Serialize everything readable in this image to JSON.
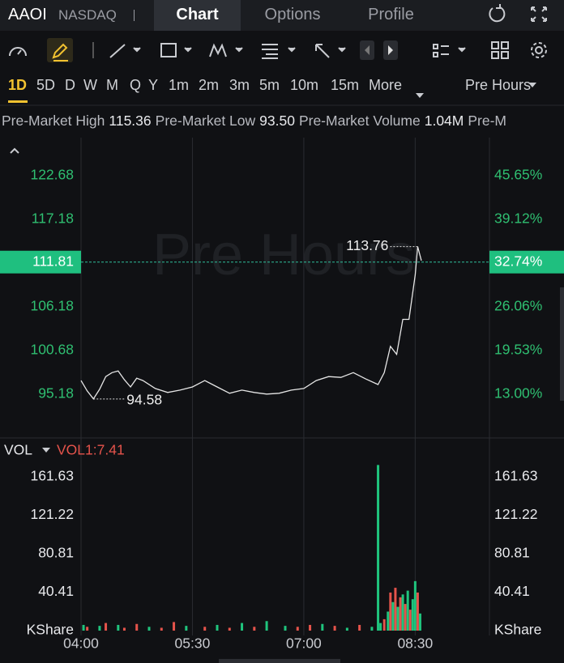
{
  "header": {
    "symbol": "AAOI",
    "exchange": "NASDAQ",
    "tabs": [
      "Chart",
      "Options",
      "Profile"
    ]
  },
  "timeframes": [
    "1D",
    "5D",
    "D",
    "W",
    "M",
    "Q",
    "Y",
    "1m",
    "2m",
    "3m",
    "5m",
    "10m",
    "15m"
  ],
  "more": "More",
  "session": "Pre Hours",
  "stats": [
    {
      "label": "Pre-Market High",
      "value": "115.36"
    },
    {
      "label": "Pre-Market Low",
      "value": "93.50"
    },
    {
      "label": "Pre-Market Volume",
      "value": "1.04M"
    },
    {
      "label": "Pre-M"
    }
  ],
  "chart_data": [
    {
      "type": "line",
      "watermark": "Pre Hours",
      "color": "#e6e6e6",
      "x": [
        "04:00",
        "04:05",
        "04:10",
        "04:15",
        "04:20",
        "04:25",
        "04:30",
        "04:35",
        "04:40",
        "04:45",
        "04:50",
        "05:00",
        "05:10",
        "05:20",
        "05:30",
        "05:40",
        "05:50",
        "06:00",
        "06:10",
        "06:20",
        "06:30",
        "06:40",
        "06:50",
        "07:00",
        "07:10",
        "07:20",
        "07:30",
        "07:40",
        "07:50",
        "08:00",
        "08:05",
        "08:10",
        "08:15",
        "08:20",
        "08:25",
        "08:30",
        "08:32",
        "08:35"
      ],
      "values": [
        96.9,
        95.6,
        94.6,
        95.8,
        97.4,
        97.9,
        98.1,
        97.0,
        96.1,
        97.2,
        96.9,
        95.9,
        95.4,
        95.7,
        96.1,
        96.9,
        96.1,
        95.3,
        95.7,
        95.4,
        95.2,
        95.3,
        95.7,
        95.9,
        96.9,
        97.4,
        97.3,
        97.9,
        97.1,
        96.4,
        97.9,
        101.2,
        100.2,
        104.6,
        104.6,
        110.2,
        113.76,
        112.0
      ],
      "xlim": [
        "04:00",
        "09:30"
      ],
      "xticks": [
        "04:00",
        "05:30",
        "07:00",
        "08:30"
      ],
      "ylim": [
        89.78,
        127.47
      ],
      "yticks": [
        95.18,
        100.68,
        106.18,
        117.18,
        122.68
      ],
      "y2lim": [
        6.59,
        51.33
      ],
      "y2ticks": [
        {
          "value": 13,
          "label": "13.00%"
        },
        {
          "value": 19.53,
          "label": "19.53%"
        },
        {
          "value": 26.06,
          "label": "26.06%"
        },
        {
          "value": 39.12,
          "label": "39.12%"
        },
        {
          "value": 45.65,
          "label": "45.65%"
        }
      ],
      "last_price": 111.81,
      "last_change": {
        "value": 32.74,
        "label": "32.74%"
      },
      "annotations": [
        {
          "x": "08:32",
          "value": 113.76
        },
        {
          "x": "04:10",
          "value": 94.58
        }
      ]
    },
    {
      "type": "bar",
      "legend_title": "VOL",
      "indicator": "VOL1:7.41",
      "unit": "KShare",
      "x": [
        "04:02",
        "04:05",
        "04:15",
        "04:20",
        "04:30",
        "04:35",
        "04:45",
        "04:55",
        "05:05",
        "05:15",
        "05:25",
        "05:40",
        "05:50",
        "06:00",
        "06:10",
        "06:20",
        "06:30",
        "06:45",
        "06:55",
        "07:05",
        "07:15",
        "07:25",
        "07:35",
        "07:45",
        "07:55",
        "08:00",
        "08:02",
        "08:05",
        "08:08",
        "08:10",
        "08:12",
        "08:14",
        "08:16",
        "08:18",
        "08:20",
        "08:22",
        "08:24",
        "08:26",
        "08:28",
        "08:30",
        "08:32",
        "08:34"
      ],
      "values": [
        6,
        4,
        5,
        8,
        6,
        3,
        7,
        4,
        3,
        9,
        5,
        4,
        6,
        3,
        8,
        4,
        10,
        5,
        4,
        6,
        7,
        5,
        3,
        6,
        4,
        174,
        8,
        12,
        20,
        40,
        30,
        45,
        25,
        35,
        38,
        28,
        42,
        22,
        33,
        52,
        40,
        18
      ],
      "colors": [
        "#1fc47d",
        "#e5534b",
        "#1fc47d",
        "#e5534b",
        "#1fc47d",
        "#e5534b",
        "#e5534b",
        "#1fc47d",
        "#e5534b",
        "#e5534b",
        "#1fc47d",
        "#e5534b",
        "#1fc47d",
        "#e5534b",
        "#1fc47d",
        "#e5534b",
        "#1fc47d",
        "#1fc47d",
        "#e5534b",
        "#e5534b",
        "#1fc47d",
        "#e5534b",
        "#1fc47d",
        "#e5534b",
        "#1fc47d",
        "#1fc47d",
        "#1fc47d",
        "#e5534b",
        "#1fc47d",
        "#e5534b",
        "#1fc47d",
        "#e5534b",
        "#1fc47d",
        "#e5534b",
        "#1fc47d",
        "#e5534b",
        "#1fc47d",
        "#e5534b",
        "#1fc47d",
        "#1fc47d",
        "#e5534b",
        "#1fc47d"
      ],
      "xlim": [
        "04:00",
        "09:30"
      ],
      "ylim": [
        0,
        199
      ],
      "yticks": [
        40.41,
        80.81,
        121.22,
        161.63
      ]
    }
  ]
}
